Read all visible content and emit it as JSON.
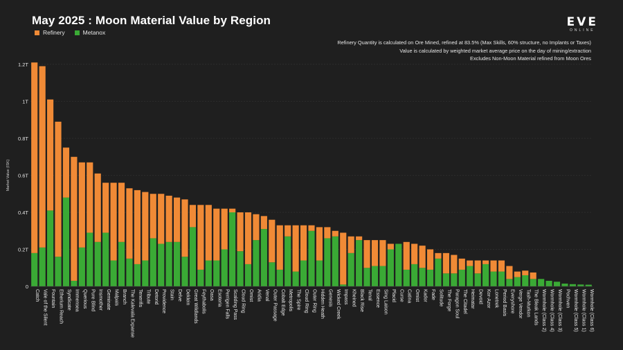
{
  "chart_data": {
    "type": "bar",
    "stacked": true,
    "title": "May 2025 : Moon Material Value by Region",
    "ylabel": "Market Value (ISK)",
    "xlabel": "",
    "ylim": [
      0,
      1.2
    ],
    "yticks": [
      0,
      0.2,
      0.4,
      0.6,
      0.8,
      1,
      1.2
    ],
    "ytick_labels": [
      "0",
      "0.2T",
      "0.4T",
      "0.6T",
      "0.8T",
      "1T",
      "1.2T"
    ],
    "grid": true,
    "legend_position": "top-left",
    "categories": [
      "Catch",
      "Vale of the Silent",
      "Fountain",
      "Etherium Reach",
      "Syndicate",
      "Immensea",
      "Querious",
      "Pure Blind",
      "Insmother",
      "Geminate",
      "Malpais",
      "Branch",
      "The Kalevala Expanse",
      "Tenerifis",
      "Tribute",
      "Detorid",
      "Providence",
      "Stain",
      "Delve",
      "Deklein",
      "Great Wildlands",
      "Feythabolis",
      "Oasa",
      "Esoteria",
      "Perrigen Falls",
      "Scalding Pass",
      "Cloud Ring",
      "Omist",
      "Aridia",
      "Venal",
      "Outer Passage",
      "Cobalt Edge",
      "Metropolis",
      "The Spire",
      "Cloud Ring",
      "Outer Ring",
      "Hidden Heath",
      "Genesis",
      "Wicked Creek",
      "Impass",
      "Kheined",
      "Black Rise",
      "Tenal",
      "Essence",
      "Sing Laison",
      "Placid",
      "Curse",
      "Catina",
      "Omist",
      "Kador",
      "Fade",
      "Solitude",
      "The Forge",
      "Paragon Soul",
      "The Citadel",
      "Heimatar",
      "Devoid",
      "Kor-Azor",
      "Lonetrek",
      "Period Basis",
      "Everyshore",
      "Verge Vendor",
      "Tash-Murkon",
      "The Bleak Lands",
      "Wormhole (Class 2)",
      "Wormhole (Class 4)",
      "Wormhole (Class 3)",
      "Pochven",
      "Wormhole (Class 5)",
      "Wormhole (Class 1)",
      "Wormhole (Class 6)"
    ],
    "series": [
      {
        "name": "Metanox",
        "color": "#3aaa35",
        "values": [
          0.18,
          0.21,
          0.41,
          0.16,
          0.48,
          0.03,
          0.21,
          0.29,
          0.24,
          0.29,
          0.14,
          0.24,
          0.15,
          0.12,
          0.14,
          0.26,
          0.23,
          0.24,
          0.24,
          0.16,
          0.32,
          0.09,
          0.14,
          0.14,
          0.2,
          0.4,
          0.19,
          0.12,
          0.25,
          0.31,
          0.13,
          0.09,
          0.27,
          0.08,
          0.14,
          0.3,
          0.14,
          0.26,
          0.27,
          0.01,
          0.18,
          0.25,
          0.1,
          0.11,
          0.11,
          0.2,
          0.23,
          0.09,
          0.12,
          0.1,
          0.09,
          0.15,
          0.07,
          0.07,
          0.09,
          0.11,
          0.07,
          0.12,
          0.08,
          0.08,
          0.04,
          0.05,
          0.06,
          0.04,
          0.04,
          0.03,
          0.025,
          0.015,
          0.012,
          0.01,
          0.009
        ]
      },
      {
        "name": "Refinery",
        "color": "#f08a36",
        "values": [
          1.03,
          0.98,
          0.6,
          0.73,
          0.27,
          0.67,
          0.46,
          0.38,
          0.37,
          0.27,
          0.42,
          0.32,
          0.38,
          0.4,
          0.37,
          0.24,
          0.27,
          0.25,
          0.24,
          0.31,
          0.12,
          0.35,
          0.3,
          0.28,
          0.22,
          0.02,
          0.21,
          0.28,
          0.14,
          0.07,
          0.23,
          0.24,
          0.06,
          0.25,
          0.19,
          0.03,
          0.18,
          0.06,
          0.03,
          0.28,
          0.09,
          0.02,
          0.15,
          0.14,
          0.14,
          0.03,
          0.0,
          0.15,
          0.11,
          0.12,
          0.11,
          0.03,
          0.11,
          0.1,
          0.06,
          0.03,
          0.07,
          0.02,
          0.06,
          0.06,
          0.07,
          0.03,
          0.025,
          0.035,
          0.0,
          0.0,
          0.0,
          0.0,
          0.0,
          0.0,
          0.0
        ]
      }
    ]
  },
  "legend": [
    {
      "label": "Refinery",
      "color": "#f08a36"
    },
    {
      "label": "Metanox",
      "color": "#3aaa35"
    }
  ],
  "notes": [
    "Refinery Quantity is calculated on Ore Mined, refined at 83.5% (Max Skills, 60% structure, no Implants or Taxes)",
    "Value is calculated by weighted market average price on the day of mining/extraction",
    "Excludes Non-Moon Material refined from Moon Ores"
  ],
  "logo": {
    "main": "EVE",
    "sub": "ONLINE"
  }
}
